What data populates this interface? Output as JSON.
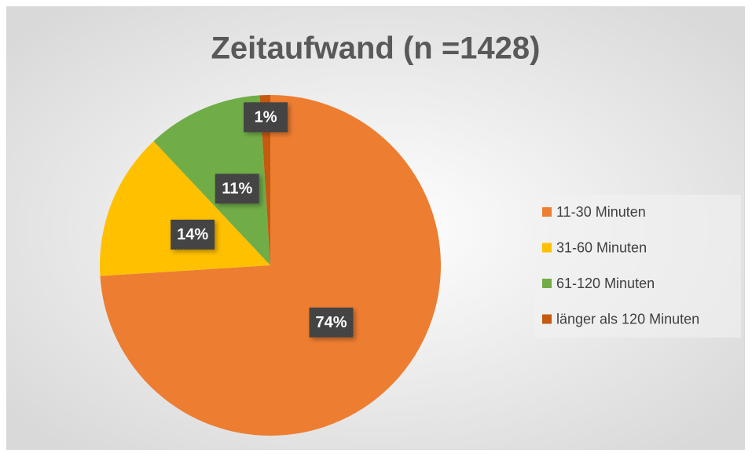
{
  "chart_data": {
    "type": "pie",
    "title": "Zeitaufwand (n =1428)",
    "categories": [
      "11-30 Minuten",
      "31-60 Minuten",
      "61-120 Minuten",
      "länger als 120 Minuten"
    ],
    "values": [
      74,
      14,
      11,
      1
    ],
    "value_labels": [
      "74%",
      "14%",
      "11%",
      "1%"
    ],
    "colors": [
      "#ED7D31",
      "#FFC000",
      "#70AD47",
      "#C55A11"
    ],
    "legend": "right"
  }
}
